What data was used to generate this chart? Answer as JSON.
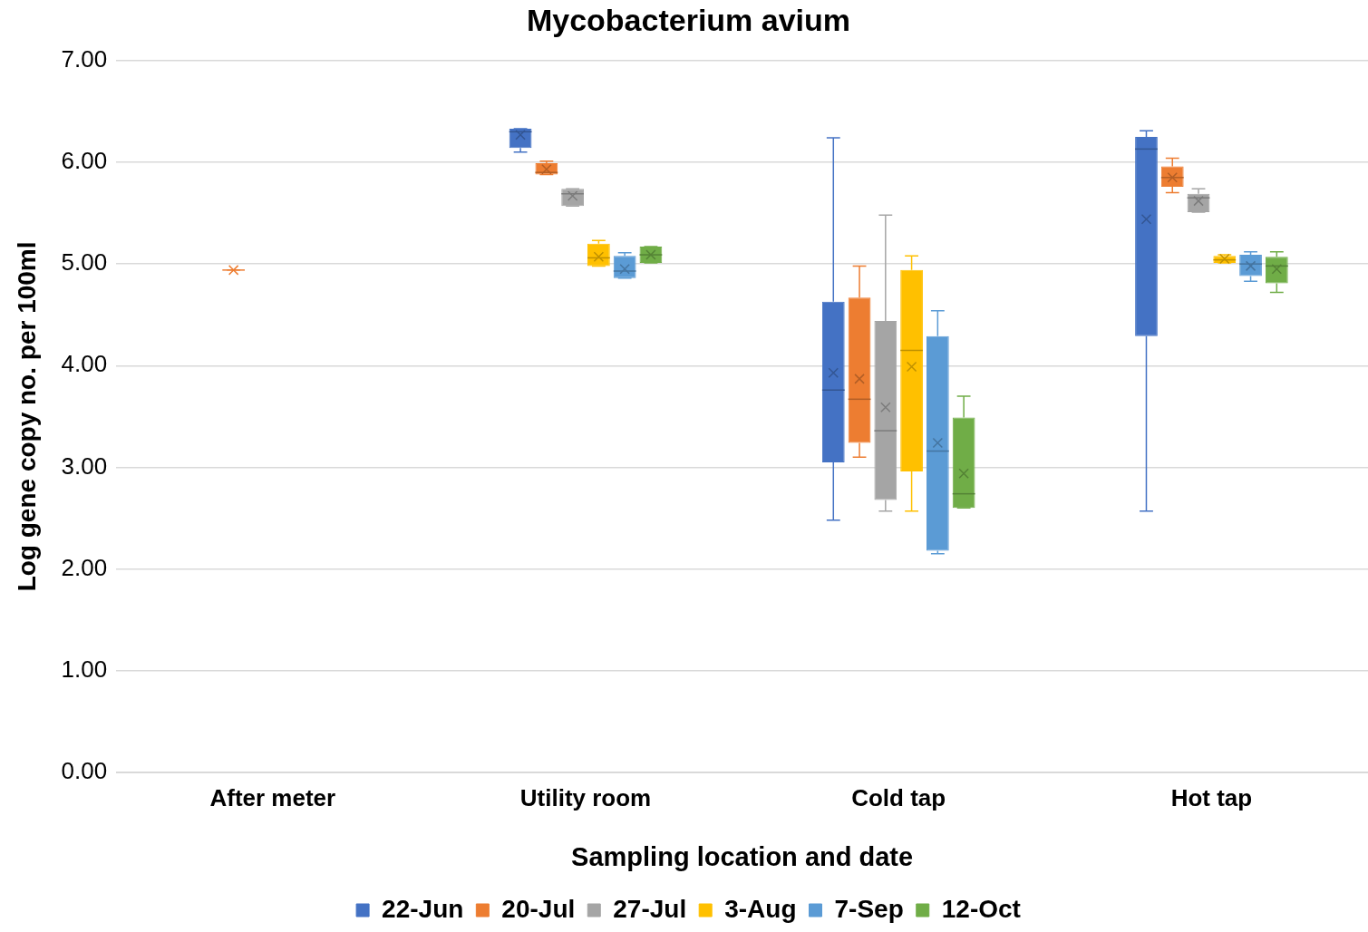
{
  "chart_data": {
    "type": "box",
    "title": "Mycobacterium avium",
    "xlabel": "Sampling location and date",
    "ylabel": "Log gene copy no. per 100ml",
    "categories": [
      "After meter",
      "Utility room",
      "Cold tap",
      "Hot tap"
    ],
    "ylim": [
      0,
      7
    ],
    "yticks": [
      {
        "value": 0,
        "label": "0.00"
      },
      {
        "value": 1,
        "label": "1.00"
      },
      {
        "value": 2,
        "label": "2.00"
      },
      {
        "value": 3,
        "label": "3.00"
      },
      {
        "value": 4,
        "label": "4.00"
      },
      {
        "value": 5,
        "label": "5.00"
      },
      {
        "value": 6,
        "label": "6.00"
      },
      {
        "value": 7,
        "label": "7.00"
      }
    ],
    "grid": "y",
    "legend": "bottom",
    "series": [
      {
        "name": "22-Jun",
        "color": "#4472c4",
        "boxes": [
          null,
          {
            "low": 6.1,
            "q1": 6.14,
            "median": 6.3,
            "q3": 6.33,
            "high": 6.33,
            "mean": 6.27
          },
          {
            "low": 2.48,
            "q1": 3.05,
            "median": 3.76,
            "q3": 4.63,
            "high": 6.24,
            "mean": 3.93
          },
          {
            "low": 2.57,
            "q1": 4.29,
            "median": 6.13,
            "q3": 6.25,
            "high": 6.31,
            "mean": 5.44
          }
        ]
      },
      {
        "name": "20-Jul",
        "color": "#ed7d31",
        "boxes": [
          {
            "low": 4.94,
            "q1": 4.94,
            "median": 4.94,
            "q3": 4.94,
            "high": 4.94,
            "mean": 4.94
          },
          {
            "low": 5.88,
            "q1": 5.88,
            "median": 5.9,
            "q3": 5.99,
            "high": 6.01,
            "mean": 5.93
          },
          {
            "low": 3.1,
            "q1": 3.24,
            "median": 3.67,
            "q3": 4.67,
            "high": 4.98,
            "mean": 3.87
          },
          {
            "low": 5.7,
            "q1": 5.76,
            "median": 5.85,
            "q3": 5.96,
            "high": 6.04,
            "mean": 5.85
          }
        ]
      },
      {
        "name": "27-Jul",
        "color": "#a5a5a5",
        "boxes": [
          null,
          {
            "low": 5.57,
            "q1": 5.57,
            "median": 5.69,
            "q3": 5.74,
            "high": 5.74,
            "mean": 5.67
          },
          {
            "low": 2.57,
            "q1": 2.68,
            "median": 3.36,
            "q3": 4.44,
            "high": 5.48,
            "mean": 3.59
          },
          {
            "low": 5.51,
            "q1": 5.51,
            "median": 5.65,
            "q3": 5.69,
            "high": 5.74,
            "mean": 5.62
          }
        ]
      },
      {
        "name": "3-Aug",
        "color": "#ffc000",
        "boxes": [
          null,
          {
            "low": 4.98,
            "q1": 4.98,
            "median": 5.06,
            "q3": 5.2,
            "high": 5.23,
            "mean": 5.07
          },
          {
            "low": 2.57,
            "q1": 2.96,
            "median": 4.15,
            "q3": 4.94,
            "high": 5.08,
            "mean": 3.99
          },
          {
            "low": 5.01,
            "q1": 5.01,
            "median": 5.04,
            "q3": 5.08,
            "high": 5.09,
            "mean": 5.05
          }
        ]
      },
      {
        "name": "7-Sep",
        "color": "#5b9bd5",
        "boxes": [
          null,
          {
            "low": 4.86,
            "q1": 4.86,
            "median": 4.93,
            "q3": 5.08,
            "high": 5.11,
            "mean": 4.95
          },
          {
            "low": 2.15,
            "q1": 2.18,
            "median": 3.16,
            "q3": 4.29,
            "high": 4.54,
            "mean": 3.24
          },
          {
            "low": 4.83,
            "q1": 4.88,
            "median": 5.0,
            "q3": 5.09,
            "high": 5.12,
            "mean": 4.98
          }
        ]
      },
      {
        "name": "12-Oct",
        "color": "#70ad47",
        "boxes": [
          null,
          {
            "low": 5.01,
            "q1": 5.01,
            "median": 5.09,
            "q3": 5.17,
            "high": 5.17,
            "mean": 5.09
          },
          {
            "low": 2.6,
            "q1": 2.6,
            "median": 2.74,
            "q3": 3.49,
            "high": 3.7,
            "mean": 2.94
          },
          {
            "low": 4.72,
            "q1": 4.81,
            "median": 4.98,
            "q3": 5.07,
            "high": 5.12,
            "mean": 4.95
          }
        ]
      }
    ]
  }
}
